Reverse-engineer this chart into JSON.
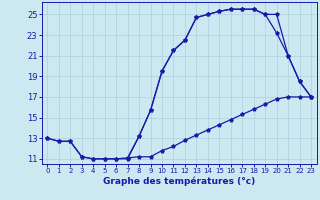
{
  "xlabel": "Graphe des températures (°c)",
  "bg_color": "#cce8f0",
  "grid_color": "#b0d4e0",
  "line_color": "#1a1aaa",
  "marker": "*",
  "xlim": [
    -0.5,
    23.5
  ],
  "ylim": [
    10.5,
    26.2
  ],
  "xticks": [
    0,
    1,
    2,
    3,
    4,
    5,
    6,
    7,
    8,
    9,
    10,
    11,
    12,
    13,
    14,
    15,
    16,
    17,
    18,
    19,
    20,
    21,
    22,
    23
  ],
  "yticks": [
    11,
    13,
    15,
    17,
    19,
    21,
    23,
    25
  ],
  "line1_x": [
    0,
    1,
    2,
    3,
    4,
    5,
    6,
    7,
    8,
    9,
    10,
    11,
    12,
    13,
    14,
    15,
    16,
    17,
    18,
    19,
    20,
    21,
    22,
    23
  ],
  "line1_y": [
    13,
    12.7,
    12.7,
    11.2,
    11,
    11,
    11,
    11,
    13.2,
    15.7,
    19.5,
    21.5,
    22.5,
    24.7,
    25.0,
    25.3,
    25.5,
    25.5,
    25.5,
    25.0,
    25.0,
    21.0,
    18.5,
    17.0
  ],
  "line2_x": [
    0,
    1,
    2,
    3,
    4,
    5,
    6,
    7,
    8,
    9,
    10,
    11,
    12,
    13,
    14,
    15,
    16,
    17,
    18,
    19,
    20,
    21,
    22,
    23
  ],
  "line2_y": [
    13,
    12.7,
    12.7,
    11.2,
    11,
    11,
    11,
    11.1,
    11.2,
    11.2,
    11.8,
    12.2,
    12.8,
    13.3,
    13.8,
    14.3,
    14.8,
    15.3,
    15.8,
    16.3,
    16.8,
    17.0,
    17.0,
    17.0
  ],
  "line3_x": [
    7,
    8,
    9,
    10,
    11,
    12,
    13,
    14,
    15,
    16,
    17,
    18,
    19,
    20,
    21,
    22,
    23
  ],
  "line3_y": [
    11.1,
    13.2,
    15.7,
    19.5,
    21.5,
    22.5,
    24.7,
    25.0,
    25.3,
    25.5,
    25.5,
    25.5,
    25.0,
    23.2,
    21.0,
    18.5,
    17.0
  ]
}
